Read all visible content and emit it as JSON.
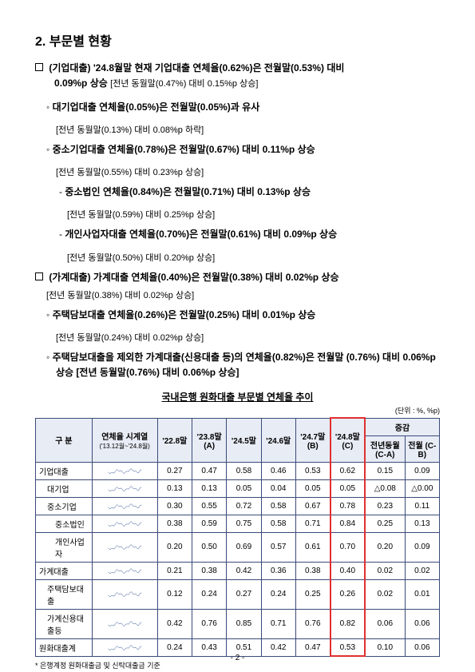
{
  "title": "2. 부문별 현황",
  "pagenum": "- 2 -",
  "s1": {
    "head": "(기업대출) '24.8월말 현재 기업대출 연체율(0.62%)은 전월말(0.53%) 대비",
    "head2": "0.09%p 상승",
    "head_sub": "[전년 동월말(0.47%) 대비 0.15%p 상승]",
    "a": {
      "t": "대기업대출 연체율(0.05%)은 전월말(0.05%)과 유사",
      "sub": "[전년 동월말(0.13%) 대비 0.08%p 하락]"
    },
    "b": {
      "t": "중소기업대출 연체율(0.78%)은 전월말(0.67%) 대비 0.11%p 상승",
      "sub": "[전년 동월말(0.55%) 대비 0.23%p 상승]"
    },
    "c": {
      "t": "중소법인 연체율(0.84%)은 전월말(0.71%) 대비 0.13%p 상승",
      "sub": "[전년 동월말(0.59%) 대비 0.25%p 상승]"
    },
    "d": {
      "t": "개인사업자대출 연체율(0.70%)은 전월말(0.61%) 대비 0.09%p 상승",
      "sub": "[전년 동월말(0.50%) 대비 0.20%p 상승]"
    }
  },
  "s2": {
    "head": "(가계대출) 가계대출 연체율(0.40%)은 전월말(0.38%) 대비 0.02%p 상승",
    "head_sub": "[전년 동월말(0.38%) 대비 0.02%p 상승]",
    "a": {
      "t": "주택담보대출 연체율(0.26%)은 전월말(0.25%) 대비 0.01%p 상승",
      "sub": "[전년 동월말(0.24%) 대비 0.02%p 상승]"
    },
    "b": {
      "t": "주택담보대출을 제외한 가계대출(신용대출 등)의 연체율(0.82%)은 전월말 (0.76%) 대비 0.06%p 상승 [전년 동월말(0.76%) 대비 0.06%p 상승]"
    }
  },
  "table": {
    "title": "국내은행 원화대출 부문별 연체율 추이",
    "unit": "(단위 : %, %p)",
    "head": {
      "col0": "구  분",
      "col1": "연체율 시계열",
      "col1sub": "('13.12월~'24.8월)",
      "col2": "'22.8말",
      "col3": "'23.8말 (A)",
      "col4": "'24.5말",
      "col5": "'24.6말",
      "col6": "'24.7말 (B)",
      "col7": "'24.8말 (C)",
      "col8": "증감",
      "col8a": "전년동월 (C-A)",
      "col8b": "전월 (C-B)"
    },
    "footnote": "* 은행계정 원화대출금 및 신탁대출금 기준",
    "rows": [
      {
        "label": "기업대출",
        "indent": 0,
        "v": [
          "0.27",
          "0.47",
          "0.58",
          "0.46",
          "0.53",
          "0.62",
          "0.15",
          "0.09"
        ]
      },
      {
        "label": "대기업",
        "indent": 1,
        "v": [
          "0.13",
          "0.13",
          "0.05",
          "0.04",
          "0.05",
          "0.05",
          "△0.08",
          "△0.00"
        ]
      },
      {
        "label": "중소기업",
        "indent": 1,
        "v": [
          "0.30",
          "0.55",
          "0.72",
          "0.58",
          "0.67",
          "0.78",
          "0.23",
          "0.11"
        ]
      },
      {
        "label": "중소법인",
        "indent": 2,
        "v": [
          "0.38",
          "0.59",
          "0.75",
          "0.58",
          "0.71",
          "0.84",
          "0.25",
          "0.13"
        ]
      },
      {
        "label": "개인사업자",
        "indent": 2,
        "v": [
          "0.20",
          "0.50",
          "0.69",
          "0.57",
          "0.61",
          "0.70",
          "0.20",
          "0.09"
        ]
      },
      {
        "label": "가계대출",
        "indent": 0,
        "v": [
          "0.21",
          "0.38",
          "0.42",
          "0.36",
          "0.38",
          "0.40",
          "0.02",
          "0.02"
        ]
      },
      {
        "label": "주택담보대출",
        "indent": 1,
        "v": [
          "0.12",
          "0.24",
          "0.27",
          "0.24",
          "0.25",
          "0.26",
          "0.02",
          "0.01"
        ]
      },
      {
        "label": "가계신용대출등",
        "indent": 1,
        "v": [
          "0.42",
          "0.76",
          "0.85",
          "0.71",
          "0.76",
          "0.82",
          "0.06",
          "0.06"
        ]
      },
      {
        "label": "원화대출계",
        "indent": 0,
        "v": [
          "0.24",
          "0.43",
          "0.51",
          "0.42",
          "0.47",
          "0.53",
          "0.10",
          "0.06"
        ]
      }
    ],
    "spark_color": "#2a4a8a",
    "hilite_color": "#e03030"
  }
}
